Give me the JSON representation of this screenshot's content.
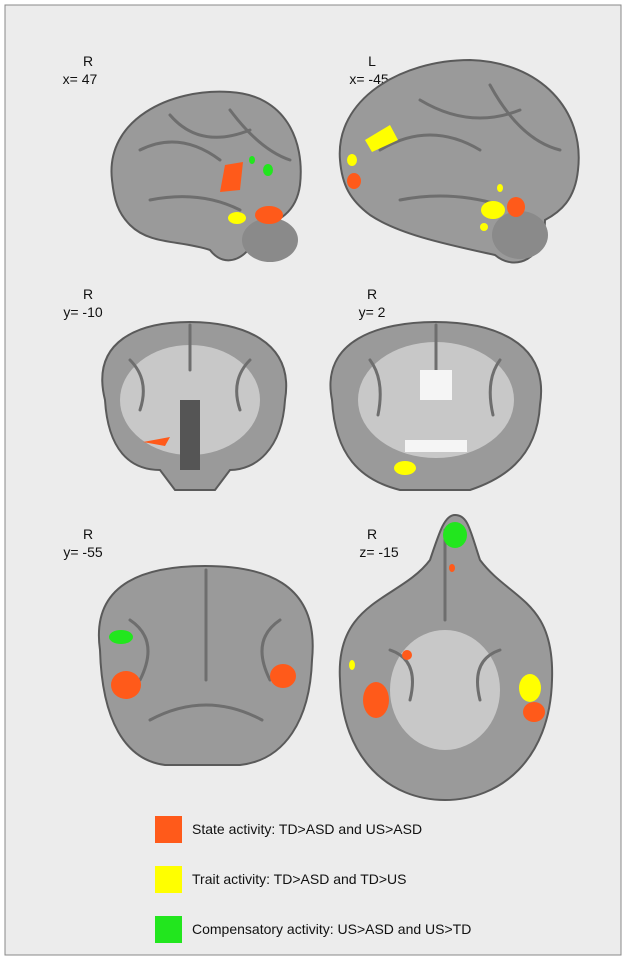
{
  "panels": [
    {
      "side": "R",
      "coord": "x= 47"
    },
    {
      "side": "L",
      "coord": "x= -45"
    },
    {
      "side": "R",
      "coord": "y= -10"
    },
    {
      "side": "R",
      "coord": "y= 2"
    },
    {
      "side": "R",
      "coord": "y= -55"
    },
    {
      "side": "R",
      "coord": "z= -15"
    }
  ],
  "legend": [
    {
      "label": "State activity: TD>ASD and US>ASD",
      "color": "#ff5a1a"
    },
    {
      "label": "Trait activity: TD>ASD  and TD>US",
      "color": "#ffff00"
    },
    {
      "label": "Compensatory activity: US>ASD and US>TD",
      "color": "#22e61e"
    }
  ]
}
